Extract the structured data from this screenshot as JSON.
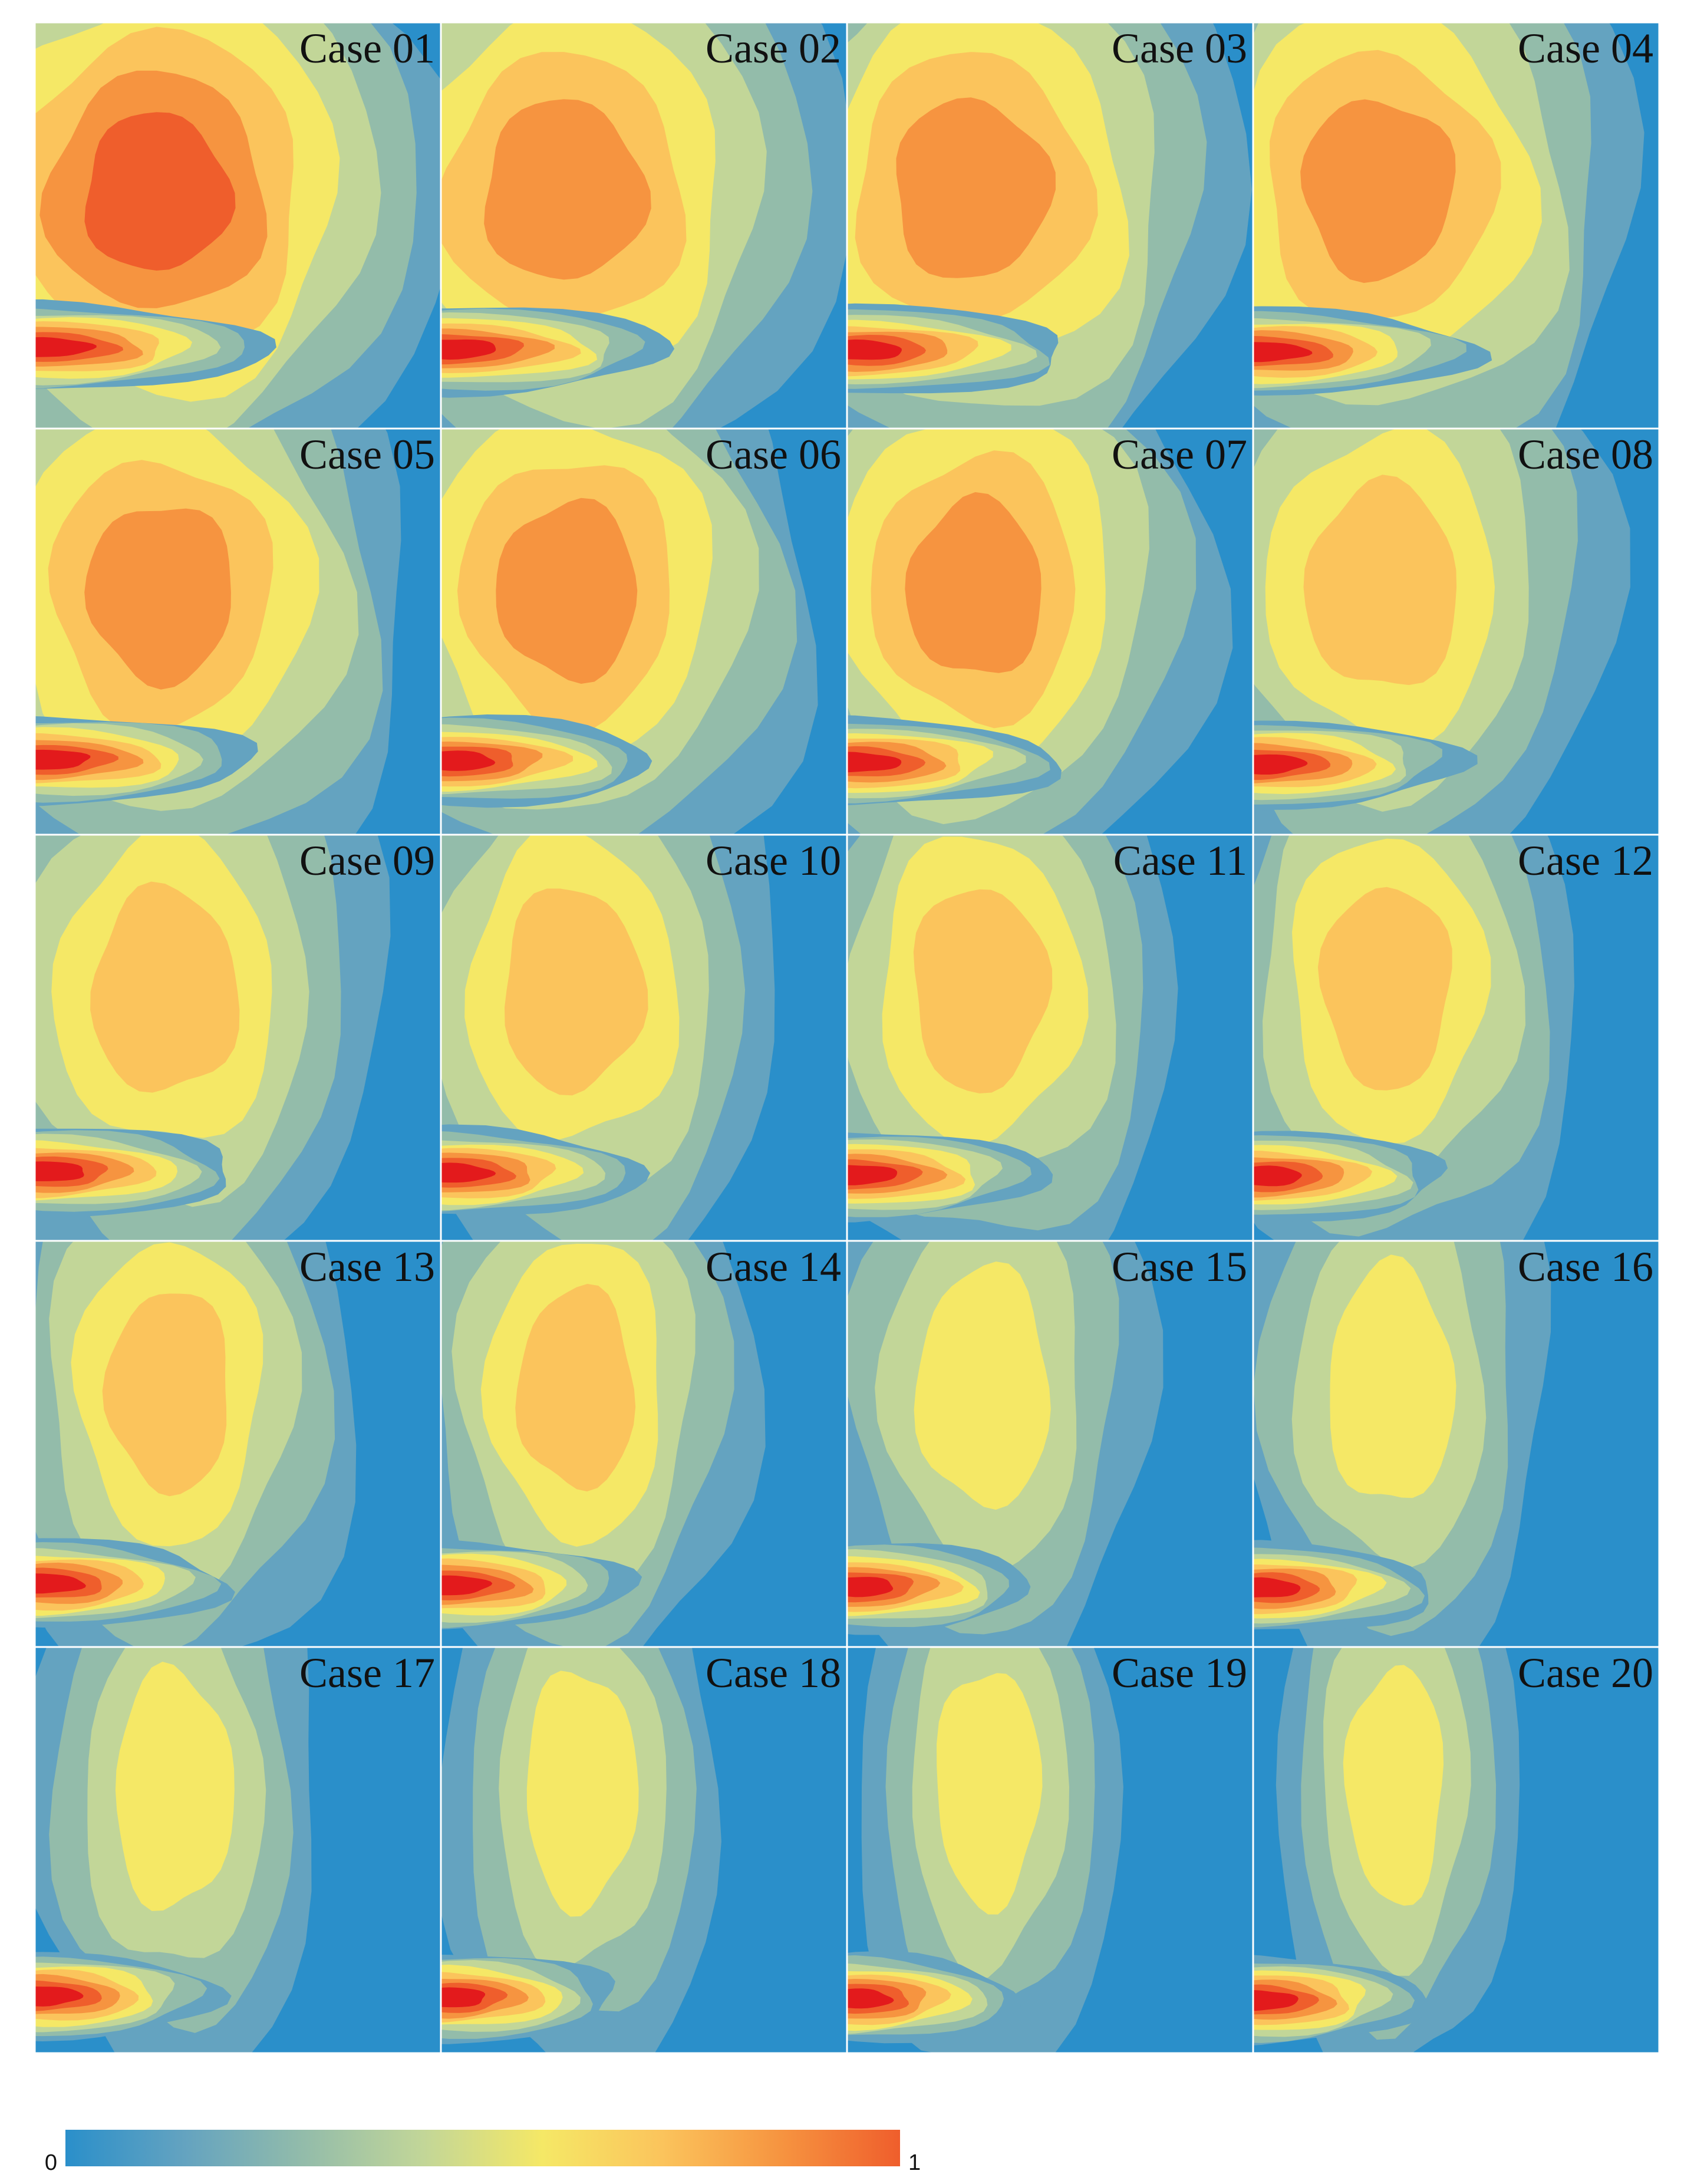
{
  "panels": [
    {
      "label": "Case 01"
    },
    {
      "label": "Case 02"
    },
    {
      "label": "Case 03"
    },
    {
      "label": "Case 04"
    },
    {
      "label": "Case 05"
    },
    {
      "label": "Case 06"
    },
    {
      "label": "Case 07"
    },
    {
      "label": "Case 08"
    },
    {
      "label": "Case 09"
    },
    {
      "label": "Case 10"
    },
    {
      "label": "Case 11"
    },
    {
      "label": "Case 12"
    },
    {
      "label": "Case 13"
    },
    {
      "label": "Case 14"
    },
    {
      "label": "Case 15"
    },
    {
      "label": "Case 16"
    },
    {
      "label": "Case 17"
    },
    {
      "label": "Case 18"
    },
    {
      "label": "Case 19"
    },
    {
      "label": "Case 20"
    }
  ],
  "colorbar": {
    "ticks": [
      0,
      1
    ],
    "colors": [
      "#2a8fca",
      "#64a3c0",
      "#93bcaa",
      "#c2d698",
      "#f5e866",
      "#fbc45c",
      "#f69440",
      "#ef5e2c",
      "#e31a1c"
    ]
  }
}
